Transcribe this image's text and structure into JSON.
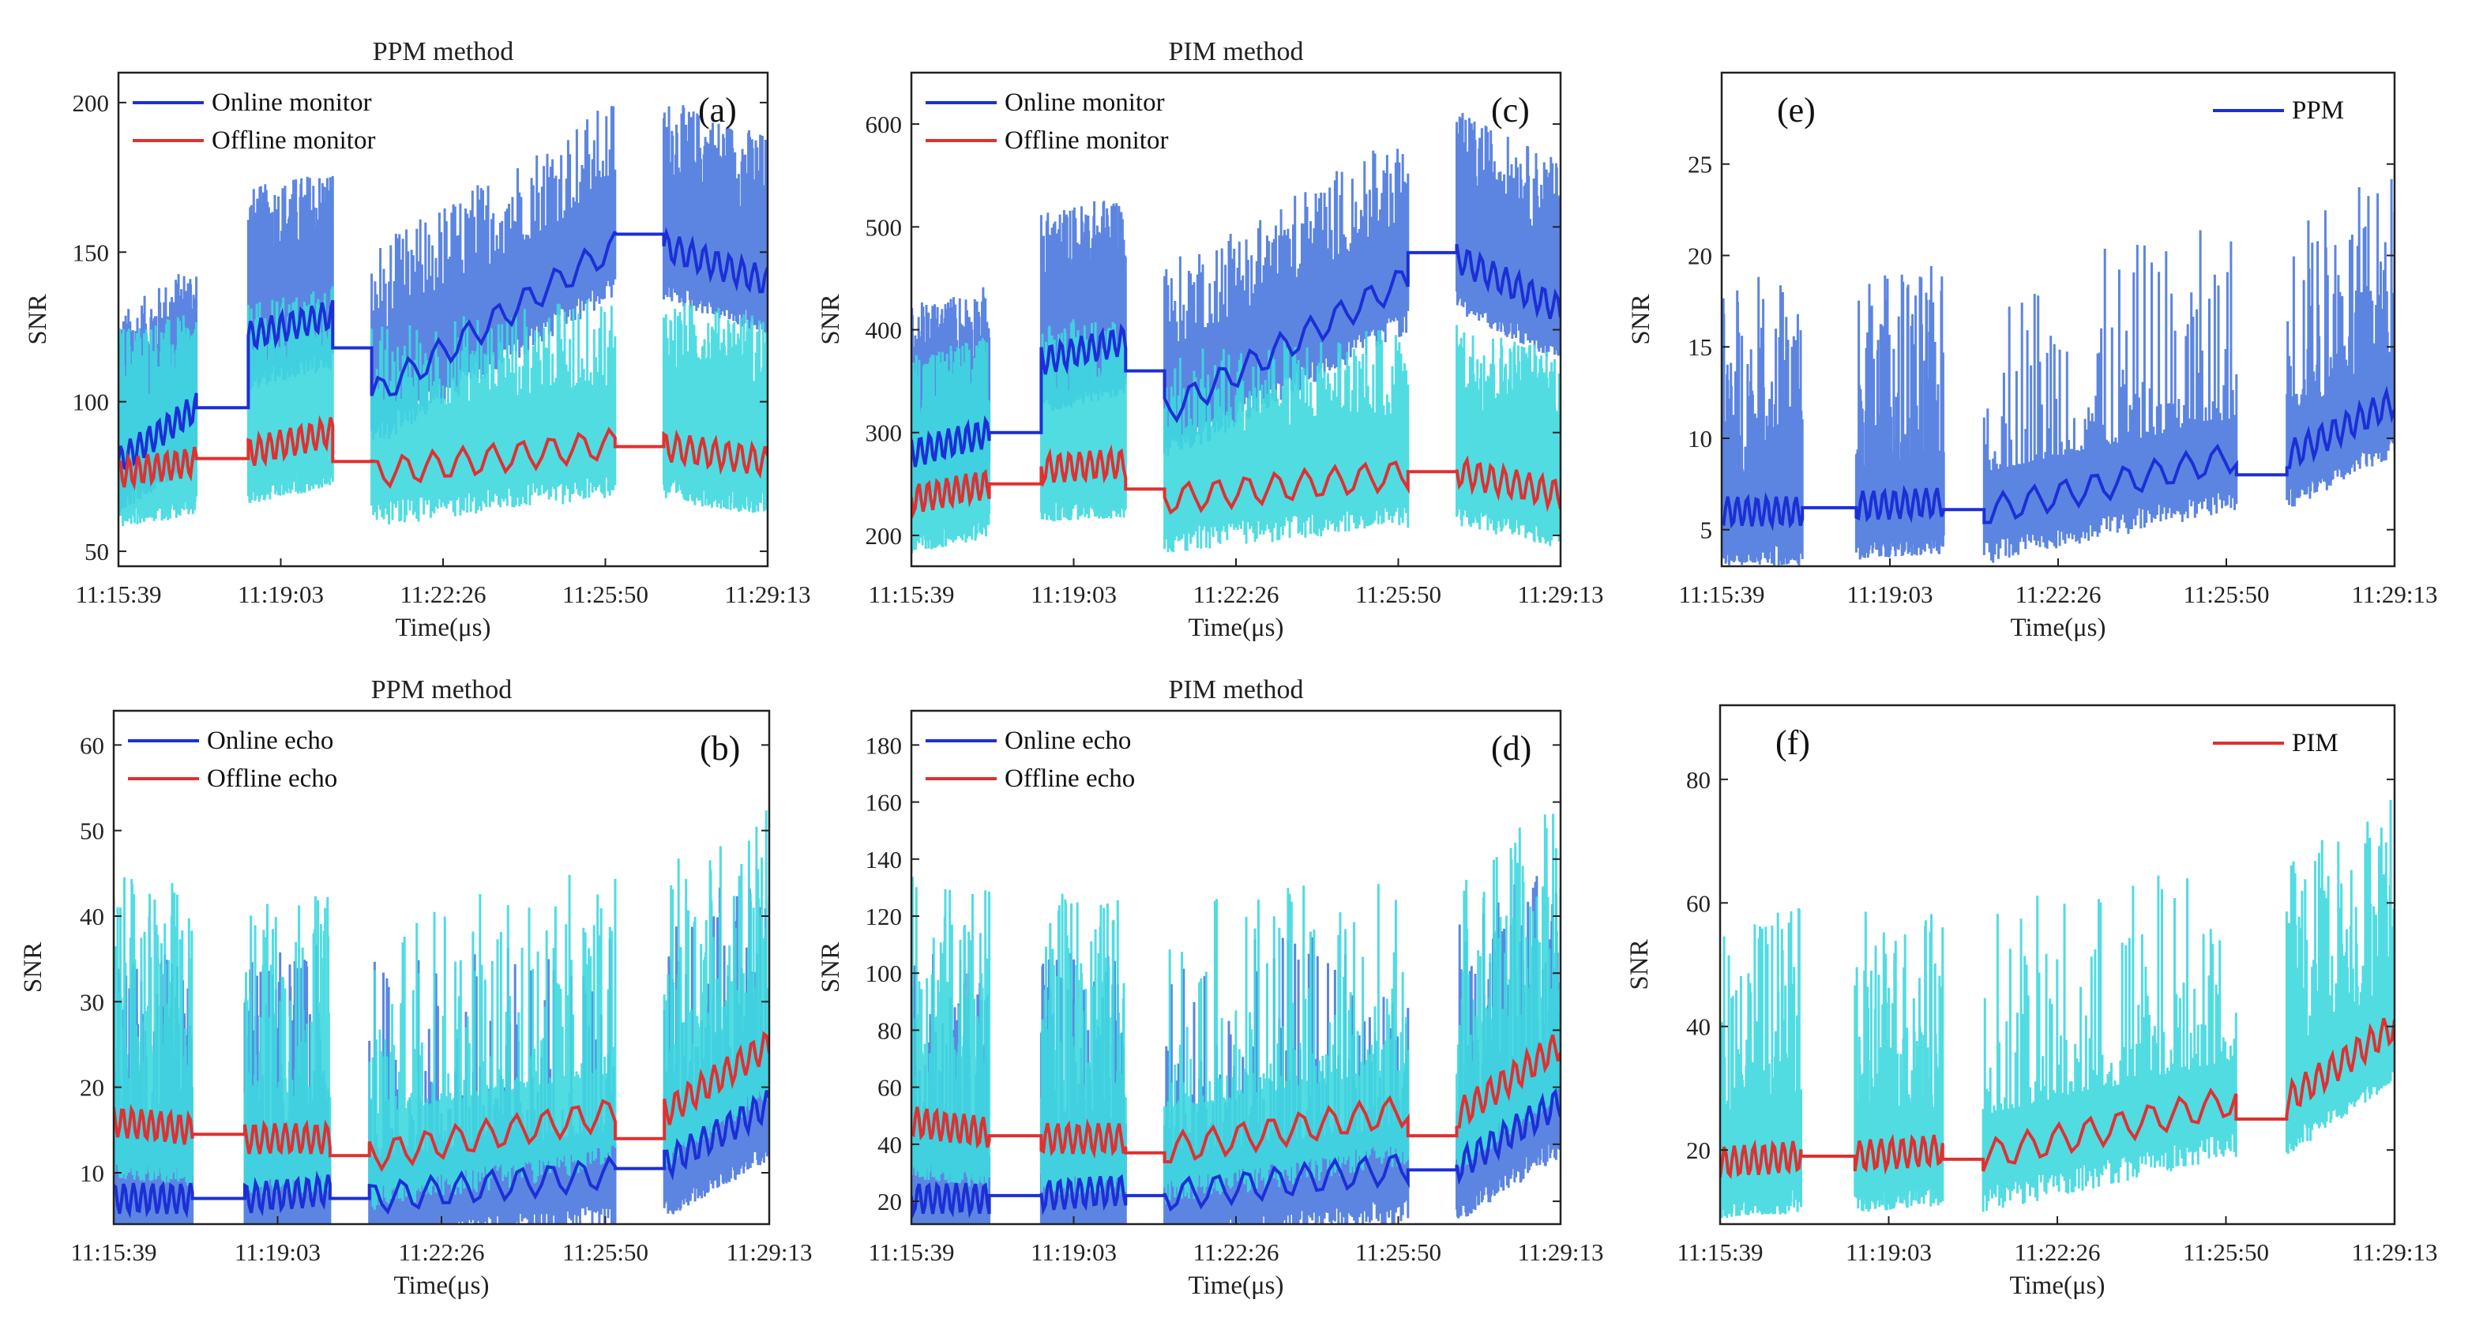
{
  "figure": {
    "xlabel": "Time(μs)",
    "x_tick_labels": [
      "11:15:39",
      "11:19:03",
      "11:22:26",
      "11:25:50",
      "11:29:13"
    ],
    "ylabel": "SNR"
  },
  "colors": {
    "online_noise": "#4a78de",
    "offline_noise": "#3ed8df",
    "online_line": "#1c2fd6",
    "offline_line": "#e03030"
  },
  "chart_data": [
    {
      "id": "a",
      "type": "line",
      "panel_label": "(a)",
      "title": "PPM method",
      "xlabel": "Time(μs)",
      "ylabel": "SNR",
      "ylim": [
        45,
        210
      ],
      "yticks": [
        50,
        100,
        150,
        200
      ],
      "series": [
        {
          "name": "Online monitor",
          "color": "#1c2fd6",
          "segments": [
            [
              80,
              98
            ],
            [
              98,
              98
            ],
            [
              122,
              129
            ],
            [
              118,
              118
            ],
            [
              102,
              152
            ],
            [
              156,
              156
            ],
            [
              152,
              140
            ]
          ]
        },
        {
          "name": "Offline monitor",
          "color": "#e03030",
          "segments": [
            [
              76,
              80
            ],
            [
              81,
              81
            ],
            [
              83,
              90
            ],
            [
              80,
              80
            ],
            [
              76,
              86
            ],
            [
              85,
              85
            ],
            [
              85,
              80
            ]
          ]
        }
      ]
    },
    {
      "id": "b",
      "type": "line",
      "panel_label": "(b)",
      "title": "PPM method",
      "xlabel": "Time(μs)",
      "ylabel": "SNR",
      "ylim": [
        4,
        64
      ],
      "yticks": [
        10,
        20,
        30,
        40,
        50,
        60
      ],
      "series": [
        {
          "name": "Online echo",
          "color": "#1c2fd6",
          "segments": [
            [
              7,
              7
            ],
            [
              7,
              7
            ],
            [
              7,
              8
            ],
            [
              7,
              7
            ],
            [
              7,
              10
            ],
            [
              10.5,
              10.5
            ],
            [
              11,
              18
            ]
          ]
        },
        {
          "name": "Offline echo",
          "color": "#e03030",
          "segments": [
            [
              16,
              15
            ],
            [
              14.5,
              14.5
            ],
            [
              14,
              14
            ],
            [
              12,
              12
            ],
            [
              12,
              17
            ],
            [
              14,
              14
            ],
            [
              17,
              25
            ]
          ]
        }
      ]
    },
    {
      "id": "c",
      "type": "line",
      "panel_label": "(c)",
      "title": "PIM method",
      "xlabel": "Time(μs)",
      "ylabel": "SNR",
      "ylim": [
        170,
        650
      ],
      "yticks": [
        200,
        300,
        400,
        500,
        600
      ],
      "series": [
        {
          "name": "Online monitor",
          "color": "#1c2fd6",
          "segments": [
            [
              280,
              300
            ],
            [
              300,
              300
            ],
            [
              370,
              390
            ],
            [
              360,
              360
            ],
            [
              320,
              450
            ],
            [
              475,
              475
            ],
            [
              470,
              420
            ]
          ]
        },
        {
          "name": "Offline monitor",
          "color": "#e03030",
          "segments": [
            [
              235,
              250
            ],
            [
              250,
              250
            ],
            [
              265,
              270
            ],
            [
              245,
              245
            ],
            [
              235,
              260
            ],
            [
              262,
              262
            ],
            [
              262,
              240
            ]
          ]
        }
      ]
    },
    {
      "id": "d",
      "type": "line",
      "panel_label": "(d)",
      "title": "PIM method",
      "xlabel": "Time(μs)",
      "ylabel": "SNR",
      "ylim": [
        12,
        192
      ],
      "yticks": [
        20,
        40,
        60,
        80,
        100,
        120,
        140,
        160,
        180
      ],
      "series": [
        {
          "name": "Online echo",
          "color": "#1c2fd6",
          "segments": [
            [
              21,
              21
            ],
            [
              22,
              22
            ],
            [
              22,
              24
            ],
            [
              22,
              22
            ],
            [
              22,
              32
            ],
            [
              31,
              31
            ],
            [
              32,
              55
            ]
          ]
        },
        {
          "name": "Offline echo",
          "color": "#e03030",
          "segments": [
            [
              48,
              44
            ],
            [
              43,
              43
            ],
            [
              42,
              42
            ],
            [
              37,
              37
            ],
            [
              38,
              52
            ],
            [
              43,
              43
            ],
            [
              50,
              75
            ]
          ]
        }
      ]
    },
    {
      "id": "e",
      "type": "line",
      "panel_label": "(e)",
      "title": "",
      "xlabel": "Time(μs)",
      "ylabel": "SNR",
      "ylim": [
        3,
        30
      ],
      "yticks": [
        5,
        10,
        15,
        20,
        25
      ],
      "series": [
        {
          "name": "PPM",
          "color": "#1c2fd6",
          "segments": [
            [
              6,
              6
            ],
            [
              6.2,
              6.2
            ],
            [
              6.3,
              6.5
            ],
            [
              6.1,
              6.1
            ],
            [
              6,
              9
            ],
            [
              8,
              8
            ],
            [
              9,
              12
            ]
          ]
        }
      ]
    },
    {
      "id": "f",
      "type": "line",
      "panel_label": "(f)",
      "title": "",
      "xlabel": "Time(μs)",
      "ylabel": "SNR",
      "ylim": [
        8,
        92
      ],
      "yticks": [
        20,
        40,
        60,
        80
      ],
      "series": [
        {
          "name": "PIM",
          "color": "#e03030",
          "segments": [
            [
              18,
              19
            ],
            [
              19,
              19
            ],
            [
              19,
              20
            ],
            [
              18.5,
              18.5
            ],
            [
              19,
              28
            ],
            [
              25,
              25
            ],
            [
              28,
              40
            ]
          ]
        }
      ]
    }
  ]
}
